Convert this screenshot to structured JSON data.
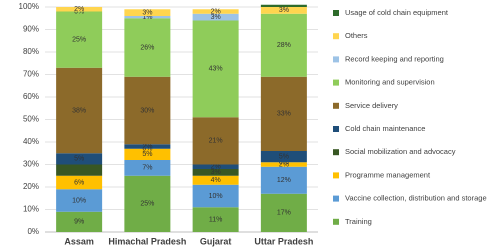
{
  "chart_data": {
    "type": "stacked_bar",
    "categories": [
      "Assam",
      "Himachal Pradesh",
      "Gujarat",
      "Uttar Pradesh"
    ],
    "series": [
      {
        "name": "Training",
        "color": "#70ad47",
        "values": [
          9,
          25,
          11,
          17
        ],
        "value_labels": [
          "9%",
          "25%",
          "11%",
          "17%"
        ]
      },
      {
        "name": "Vaccine collection, distribution and storage",
        "color": "#5b9bd5",
        "values": [
          10,
          7,
          10,
          12
        ],
        "value_labels": [
          "10%",
          "7%",
          "10%",
          "12%"
        ]
      },
      {
        "name": "Programme management",
        "color": "#ffc000",
        "values": [
          6,
          5,
          4,
          2
        ],
        "value_labels": [
          "6%",
          "5%",
          "4%",
          "2%"
        ]
      },
      {
        "name": "Social mobilization and advocacy",
        "color": "#385723",
        "values": [
          5,
          0,
          3,
          0
        ],
        "value_labels": [
          null,
          "0%",
          "3%",
          "0%"
        ]
      },
      {
        "name": "Cold chain maintenance",
        "color": "#1f4e79",
        "values": [
          5,
          2,
          2,
          5
        ],
        "value_labels": [
          "5%",
          "2%",
          "2%",
          "5%"
        ]
      },
      {
        "name": "Service delivery",
        "color": "#8c6a2a",
        "values": [
          38,
          30,
          21,
          33
        ],
        "value_labels": [
          "38%",
          "30%",
          "21%",
          "33%"
        ]
      },
      {
        "name": "Monitoring and supervision",
        "color": "#8fcc5a",
        "values": [
          25,
          26,
          43,
          28
        ],
        "value_labels": [
          "25%",
          "26%",
          "43%",
          "28%"
        ]
      },
      {
        "name": "Record keeping and reporting",
        "color": "#9dc3e6",
        "values": [
          0,
          1,
          3,
          0
        ],
        "value_labels": [
          "0%",
          "1%",
          "3%",
          null
        ]
      },
      {
        "name": "Others",
        "color": "#ffd54f",
        "values": [
          2,
          3,
          2,
          3
        ],
        "value_labels": [
          "2%",
          "3%",
          "2%",
          "3%"
        ]
      },
      {
        "name": "Usage of cold chain equipment",
        "color": "#2e6b2a",
        "values": [
          0,
          0,
          0,
          1
        ],
        "value_labels": [
          null,
          null,
          null,
          null
        ]
      }
    ],
    "ylim": [
      0,
      100
    ],
    "yticks": [
      {
        "value": 0,
        "label": "0%"
      },
      {
        "value": 10,
        "label": "10%"
      },
      {
        "value": 20,
        "label": "20%"
      },
      {
        "value": 30,
        "label": "30%"
      },
      {
        "value": 40,
        "label": "40%"
      },
      {
        "value": 50,
        "label": "50%"
      },
      {
        "value": 60,
        "label": "60%"
      },
      {
        "value": 70,
        "label": "70%"
      },
      {
        "value": 80,
        "label": "80%"
      },
      {
        "value": 90,
        "label": "90%"
      },
      {
        "value": 100,
        "label": "100%"
      }
    ],
    "grid": true
  }
}
